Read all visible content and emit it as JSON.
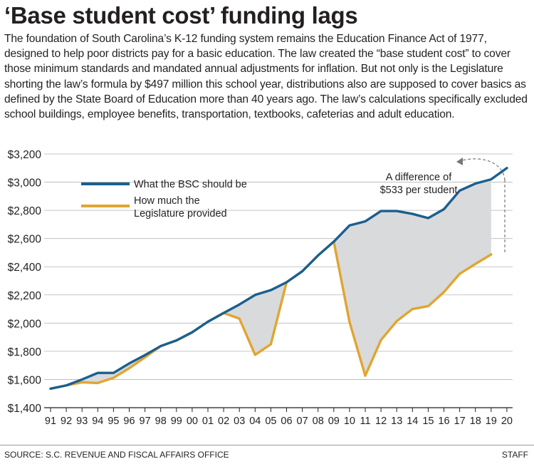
{
  "headline": "‘Base student cost’ funding lags",
  "intro": "The foundation of South Carolina’s K-12 funding system remains the Education Finance Act of 1977, designed to help poor districts pay for a basic education. The law created the “base student cost” to cover those minimum standards and mandated annual adjustments for inflation. But not only is the Legislature shorting the law’s formula by $497 million this school year, distributions also are supposed to cover basics as defined by the State Board of Education more than 40 years ago. The law’s calculations specifically excluded school buildings, employee benefits, transportation, textbooks, cafeterias and adult education.",
  "source": "SOURCE: S.C. REVENUE AND FISCAL AFFAIRS OFFICE",
  "credit": "STAFF",
  "colors": {
    "should": "#1a5f8e",
    "provided": "#e0a531",
    "gap": "#d9dadc",
    "axis": "#231f20"
  },
  "chart_data": {
    "type": "line",
    "x": [
      "91",
      "92",
      "93",
      "94",
      "95",
      "96",
      "97",
      "98",
      "99",
      "00",
      "01",
      "02",
      "03",
      "04",
      "05",
      "06",
      "07",
      "08",
      "09",
      "10",
      "11",
      "12",
      "13",
      "14",
      "15",
      "16",
      "17",
      "18",
      "19",
      "20"
    ],
    "ylim": [
      1400,
      3200
    ],
    "yticks": [
      1400,
      1600,
      1800,
      2000,
      2200,
      2400,
      2600,
      2800,
      3000,
      3200
    ],
    "ytick_labels": [
      "$1,400",
      "$1,600",
      "$1,800",
      "$2,000",
      "$2,200",
      "$2,400",
      "$2,600",
      "$2,800",
      "$3,000",
      "$3,200"
    ],
    "series": [
      {
        "name": "What the BSC should be",
        "values": [
          1535,
          1558,
          1600,
          1647,
          1647,
          1714,
          1773,
          1837,
          1877,
          1935,
          2010,
          2072,
          2132,
          2200,
          2234,
          2290,
          2368,
          2480,
          2578,
          2693,
          2722,
          2795,
          2795,
          2775,
          2745,
          2808,
          2940,
          2990,
          3020,
          3100
        ]
      },
      {
        "name": "How much the Legislature provided",
        "values": [
          1535,
          1558,
          1580,
          1575,
          1612,
          1680,
          1757,
          1837,
          1877,
          1935,
          2010,
          2072,
          2032,
          1775,
          1850,
          2290,
          2368,
          2480,
          2578,
          2008,
          1627,
          1880,
          2014,
          2100,
          2120,
          2220,
          2350,
          2420,
          2487,
          null
        ]
      }
    ],
    "legend": {
      "position": "top-left"
    },
    "annotation": "A difference of $533 per student"
  }
}
